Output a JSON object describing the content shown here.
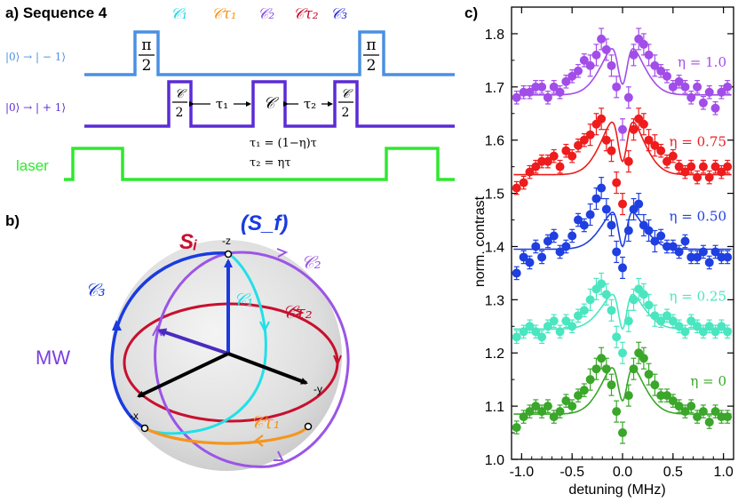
{
  "panel_a": {
    "label": "a) Sequence 4",
    "header_labels": [
      {
        "name": "C1",
        "text": "𝒞₁",
        "color": "#22d3e6"
      },
      {
        "name": "Ctau1",
        "text": "𝒞τ₁",
        "color": "#f5961e"
      },
      {
        "name": "C2",
        "text": "𝒞₂",
        "color": "#8b4fe0"
      },
      {
        "name": "Ctau2",
        "text": "𝒞τ₂",
        "color": "#c8102e"
      },
      {
        "name": "C3",
        "text": "𝒞₃",
        "color": "#2b2fd6"
      }
    ],
    "channels": [
      {
        "label": "|0⟩ → | − 1⟩",
        "color": "#4a90e2"
      },
      {
        "label": "|0⟩ → | + 1⟩",
        "color": "#5b2bd6"
      },
      {
        "label": "laser",
        "color": "#2ee82e"
      }
    ],
    "pulse_pi": {
      "num": "π",
      "den": "2"
    },
    "pulse_c": {
      "num": "𝒞",
      "den": "2"
    },
    "pulse_full": "𝒞",
    "tau1": "τ₁",
    "tau2": "τ₂",
    "eq1": "τ₁ = (1−η)τ",
    "eq2": "τ₂ =  ητ"
  },
  "panel_b": {
    "label": "b)",
    "si": "Sᵢ",
    "sf": "(S_f)",
    "mw": "MW",
    "axis_z": "-z",
    "axis_x": "-x",
    "axis_y": "-y",
    "curve_labels": {
      "c1": "𝒞₁",
      "c2": "𝒞₂",
      "c3": "𝒞₃",
      "ctau1": "𝒞τ₁",
      "ctau2": "𝒞τ₂"
    },
    "colors": {
      "c1": "#22e0e8",
      "c2": "#9b55e6",
      "c3": "#1a3be0",
      "ctau1": "#f5961e",
      "ctau2": "#c8102e",
      "si": "#c8102e",
      "sf": "#1a3be0",
      "mw": "#7b3fe0"
    }
  },
  "chart_data": {
    "type": "scatter",
    "panel_label": "c)",
    "xlabel": "detuning (MHz)",
    "ylabel": "norm. contrast",
    "xlim": [
      -1.1,
      1.1
    ],
    "ylim": [
      1.0,
      1.85
    ],
    "xticks": [
      -1.0,
      -0.5,
      0.0,
      0.5,
      1.0
    ],
    "xtick_labels": [
      "-1.0",
      "-0.5",
      "0.0",
      "0.5",
      "1.0"
    ],
    "yticks": [
      1.0,
      1.1,
      1.2,
      1.3,
      1.4,
      1.5,
      1.6,
      1.7,
      1.8
    ],
    "ytick_labels": [
      "1.0",
      "1.1",
      "1.2",
      "1.3",
      "1.4",
      "1.5",
      "1.6",
      "1.7",
      "1.8"
    ],
    "series": [
      {
        "name": "η = 1.0",
        "color": "#a24de8",
        "base": 1.685,
        "peak_h": 0.11,
        "dip_h": 0.09,
        "dip_w": 0.045,
        "x": [
          -1.05,
          -0.98,
          -0.92,
          -0.86,
          -0.8,
          -0.74,
          -0.68,
          -0.62,
          -0.56,
          -0.5,
          -0.44,
          -0.38,
          -0.32,
          -0.26,
          -0.21,
          -0.16,
          -0.11,
          -0.06,
          0.0,
          0.06,
          0.11,
          0.16,
          0.21,
          0.26,
          0.32,
          0.38,
          0.44,
          0.5,
          0.56,
          0.62,
          0.68,
          0.74,
          0.8,
          0.86,
          0.92,
          0.98,
          1.04
        ],
        "y": [
          1.68,
          1.69,
          1.69,
          1.7,
          1.7,
          1.68,
          1.7,
          1.69,
          1.71,
          1.72,
          1.73,
          1.75,
          1.74,
          1.76,
          1.79,
          1.77,
          1.74,
          1.7,
          1.62,
          1.68,
          1.76,
          1.79,
          1.78,
          1.76,
          1.74,
          1.73,
          1.72,
          1.7,
          1.71,
          1.7,
          1.68,
          1.7,
          1.67,
          1.69,
          1.66,
          1.69,
          1.7
        ]
      },
      {
        "name": "η = 0.75",
        "color": "#ee1c1c",
        "base": 1.535,
        "peak_h": 0.125,
        "dip_h": 0.1,
        "dip_w": 0.045,
        "x": [
          -1.05,
          -0.98,
          -0.92,
          -0.86,
          -0.8,
          -0.74,
          -0.68,
          -0.62,
          -0.56,
          -0.5,
          -0.44,
          -0.38,
          -0.32,
          -0.26,
          -0.21,
          -0.16,
          -0.11,
          -0.06,
          0.0,
          0.06,
          0.11,
          0.16,
          0.21,
          0.26,
          0.32,
          0.38,
          0.44,
          0.5,
          0.56,
          0.62,
          0.68,
          0.74,
          0.8,
          0.86,
          0.92,
          0.98,
          1.04
        ],
        "y": [
          1.51,
          1.52,
          1.54,
          1.55,
          1.56,
          1.56,
          1.57,
          1.55,
          1.58,
          1.57,
          1.59,
          1.6,
          1.61,
          1.63,
          1.64,
          1.6,
          1.58,
          1.52,
          1.48,
          1.56,
          1.62,
          1.64,
          1.63,
          1.6,
          1.59,
          1.58,
          1.56,
          1.57,
          1.55,
          1.54,
          1.55,
          1.53,
          1.55,
          1.53,
          1.55,
          1.54,
          1.55
        ]
      },
      {
        "name": "η = 0.50",
        "color": "#1f3fe0",
        "base": 1.395,
        "peak_h": 0.085,
        "dip_h": 0.08,
        "dip_w": 0.04,
        "x": [
          -1.05,
          -0.98,
          -0.92,
          -0.86,
          -0.8,
          -0.74,
          -0.68,
          -0.62,
          -0.56,
          -0.5,
          -0.44,
          -0.38,
          -0.32,
          -0.26,
          -0.21,
          -0.16,
          -0.11,
          -0.06,
          0.0,
          0.06,
          0.11,
          0.16,
          0.21,
          0.26,
          0.32,
          0.38,
          0.44,
          0.5,
          0.56,
          0.62,
          0.68,
          0.74,
          0.8,
          0.86,
          0.92,
          0.98,
          1.04
        ],
        "y": [
          1.35,
          1.38,
          1.37,
          1.4,
          1.38,
          1.41,
          1.42,
          1.39,
          1.4,
          1.42,
          1.45,
          1.44,
          1.46,
          1.49,
          1.51,
          1.47,
          1.44,
          1.39,
          1.36,
          1.43,
          1.47,
          1.48,
          1.44,
          1.43,
          1.41,
          1.42,
          1.4,
          1.4,
          1.39,
          1.41,
          1.38,
          1.38,
          1.39,
          1.37,
          1.39,
          1.38,
          1.38
        ]
      },
      {
        "name": "η = 0.25",
        "color": "#4ae6c0",
        "base": 1.245,
        "peak_h": 0.08,
        "dip_h": 0.08,
        "dip_w": 0.04,
        "x": [
          -1.05,
          -0.98,
          -0.92,
          -0.86,
          -0.8,
          -0.74,
          -0.68,
          -0.62,
          -0.56,
          -0.5,
          -0.44,
          -0.38,
          -0.32,
          -0.26,
          -0.21,
          -0.16,
          -0.11,
          -0.06,
          0.0,
          0.06,
          0.11,
          0.16,
          0.21,
          0.26,
          0.32,
          0.38,
          0.44,
          0.5,
          0.56,
          0.62,
          0.68,
          0.74,
          0.8,
          0.86,
          0.92,
          0.98,
          1.04
        ],
        "y": [
          1.23,
          1.24,
          1.25,
          1.24,
          1.23,
          1.25,
          1.26,
          1.24,
          1.26,
          1.25,
          1.27,
          1.28,
          1.3,
          1.32,
          1.33,
          1.31,
          1.28,
          1.23,
          1.2,
          1.26,
          1.3,
          1.32,
          1.31,
          1.29,
          1.27,
          1.26,
          1.27,
          1.26,
          1.25,
          1.24,
          1.26,
          1.25,
          1.24,
          1.25,
          1.24,
          1.25,
          1.24
        ]
      },
      {
        "name": "η = 0",
        "color": "#3aa62a",
        "base": 1.085,
        "peak_h": 0.11,
        "dip_h": 0.085,
        "dip_w": 0.045,
        "x": [
          -1.05,
          -0.98,
          -0.92,
          -0.86,
          -0.8,
          -0.74,
          -0.68,
          -0.62,
          -0.56,
          -0.5,
          -0.44,
          -0.38,
          -0.32,
          -0.26,
          -0.21,
          -0.16,
          -0.11,
          -0.06,
          0.0,
          0.06,
          0.11,
          0.16,
          0.21,
          0.26,
          0.32,
          0.38,
          0.44,
          0.5,
          0.56,
          0.62,
          0.68,
          0.74,
          0.8,
          0.86,
          0.92,
          0.98,
          1.04
        ],
        "y": [
          1.06,
          1.08,
          1.09,
          1.1,
          1.09,
          1.1,
          1.08,
          1.09,
          1.11,
          1.1,
          1.12,
          1.13,
          1.15,
          1.17,
          1.19,
          1.17,
          1.14,
          1.09,
          1.05,
          1.12,
          1.17,
          1.2,
          1.19,
          1.16,
          1.14,
          1.12,
          1.12,
          1.11,
          1.1,
          1.09,
          1.1,
          1.08,
          1.09,
          1.07,
          1.09,
          1.08,
          1.08
        ]
      }
    ]
  }
}
